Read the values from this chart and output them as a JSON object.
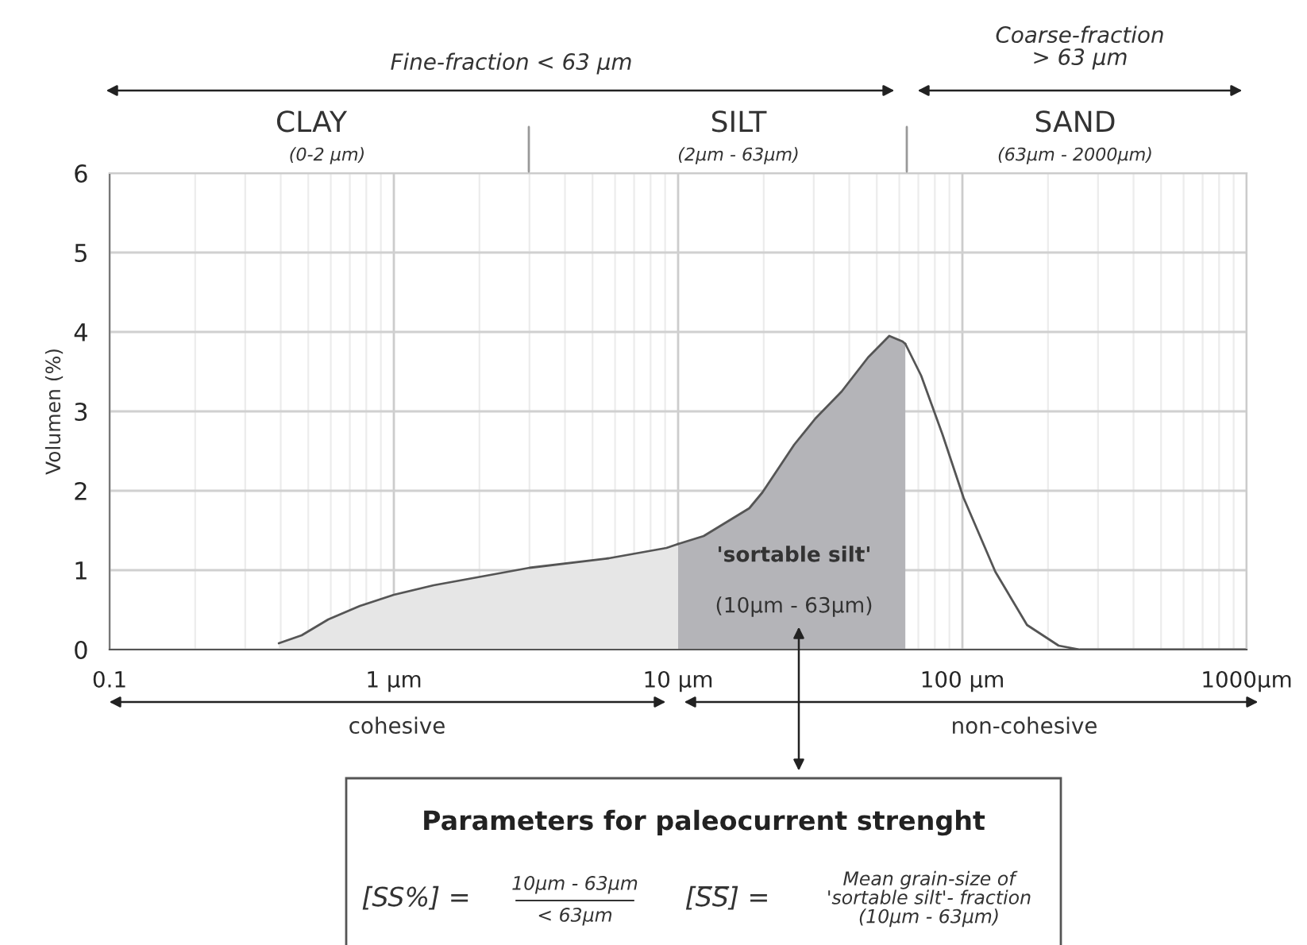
{
  "chart_data": {
    "type": "area",
    "ylabel": "Volumen (%)",
    "log": "x",
    "xlim": [
      0.1,
      1000
    ],
    "ylim": [
      0,
      6
    ],
    "xticks": [
      0.1,
      {
        "value": 1,
        "label": "1 µm"
      },
      {
        "value": 10,
        "label": "10 µm"
      },
      {
        "value": 100,
        "label": "100 µm"
      },
      {
        "value": 1000,
        "label": "1000µm"
      }
    ],
    "yticks": [
      0,
      1,
      2,
      3,
      4,
      5,
      6
    ],
    "grid": true,
    "legend": false,
    "marker": "none",
    "line_style": "solid",
    "series": [
      {
        "color": "#e6e6e6",
        "x": [
          0.394,
          0.474,
          0.588,
          0.76,
          1.0,
          1.38,
          3.0,
          5.7,
          9.1,
          10
        ],
        "values": [
          0.08,
          0.18,
          0.38,
          0.55,
          0.69,
          0.81,
          1.03,
          1.15,
          1.28,
          1.33
        ]
      },
      {
        "color": "#b4b4b8",
        "x": [
          10,
          12.3,
          17.8,
          19.8,
          25.6,
          30.4,
          37.6,
          46.6,
          55.3,
          61.6,
          63
        ],
        "values": [
          1.33,
          1.43,
          1.78,
          1.98,
          2.58,
          2.91,
          3.25,
          3.68,
          3.95,
          3.88,
          3.85
        ]
      },
      {
        "type": "line",
        "color": "#555555",
        "x": [
          63,
          71.6,
          85.1,
          101,
          130.6,
          168.8,
          218,
          259,
          1000
        ],
        "values": [
          3.85,
          3.45,
          2.71,
          1.91,
          0.98,
          0.31,
          0.05,
          0,
          0
        ]
      }
    ],
    "annotations": [
      "Fine-fraction < 63 µm",
      "Coarse-fraction\n> 63 µm",
      "CLAY",
      "(0-2 µm)",
      "SILT",
      "(2µm - 63µm)",
      "SAND",
      "(63µm - 2000µm)",
      "'sortable silt'",
      "(10µm - 63µm)",
      "cohesive",
      "non-cohesive",
      "Parameters for paleocurrent strenght",
      "[SS%] =",
      "10µm - 63µm",
      "< 63µm",
      "[S̅S̅] =",
      "Mean grain-size of\n'sortable silt'- fraction\n(10µm - 63µm)"
    ]
  }
}
